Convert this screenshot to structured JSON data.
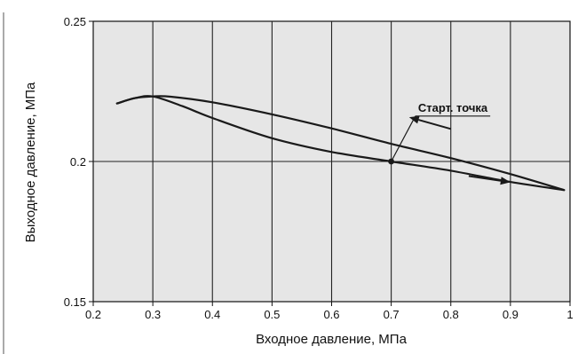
{
  "chart_data": {
    "type": "line",
    "xlabel": "Входное давление, МПа",
    "ylabel": "Выходное давление, МПа",
    "xlim": [
      0.2,
      1.0
    ],
    "ylim": [
      0.15,
      0.25
    ],
    "x_ticks": [
      {
        "value": 0.2,
        "label": "0.2"
      },
      {
        "value": 0.3,
        "label": "0.3"
      },
      {
        "value": 0.4,
        "label": "0.4"
      },
      {
        "value": 0.5,
        "label": "0.5"
      },
      {
        "value": 0.6,
        "label": "0.6"
      },
      {
        "value": 0.7,
        "label": "0.7"
      },
      {
        "value": 0.8,
        "label": "0.8"
      },
      {
        "value": 0.9,
        "label": "0.9"
      },
      {
        "value": 1.0,
        "label": "1"
      }
    ],
    "y_ticks": [
      {
        "value": 0.15,
        "label": "0.15"
      },
      {
        "value": 0.2,
        "label": "0.2"
      },
      {
        "value": 0.25,
        "label": "0.25"
      }
    ],
    "grid": true,
    "plot_background": "#e6e6e6",
    "line_color": "#1a1a1a",
    "series": [
      {
        "key": "upper",
        "points": [
          [
            0.24,
            0.2207
          ],
          [
            0.27,
            0.2226
          ],
          [
            0.3,
            0.2232
          ],
          [
            0.33,
            0.2231
          ],
          [
            0.4,
            0.2211
          ],
          [
            0.5,
            0.2168
          ],
          [
            0.6,
            0.2118
          ],
          [
            0.7,
            0.2063
          ],
          [
            0.8,
            0.2012
          ],
          [
            0.9,
            0.1955
          ],
          [
            0.99,
            0.1898
          ]
        ]
      },
      {
        "key": "lower",
        "points": [
          [
            0.24,
            0.2207
          ],
          [
            0.27,
            0.2226
          ],
          [
            0.3,
            0.2232
          ],
          [
            0.35,
            0.2197
          ],
          [
            0.4,
            0.2155
          ],
          [
            0.5,
            0.2083
          ],
          [
            0.6,
            0.2034
          ],
          [
            0.7,
            0.2
          ],
          [
            0.8,
            0.1967
          ],
          [
            0.9,
            0.1927
          ],
          [
            0.99,
            0.1898
          ]
        ]
      }
    ],
    "start_point": {
      "x": 0.7,
      "y": 0.2
    },
    "annotation": {
      "text": "Старт. точка",
      "x": 0.745,
      "y": 0.2162
    },
    "arrows": [
      {
        "from": [
          0.8,
          0.2116
        ],
        "to": [
          0.73,
          0.2158
        ],
        "direction": "left"
      },
      {
        "from": [
          0.83,
          0.1948
        ],
        "to": [
          0.9,
          0.1926
        ],
        "direction": "right"
      }
    ]
  }
}
